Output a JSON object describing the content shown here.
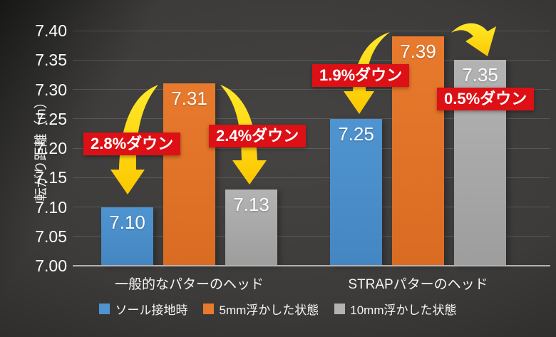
{
  "chart_data": {
    "type": "bar",
    "title": "",
    "ylabel": "転がり距離（m）",
    "ylim": [
      7.0,
      7.4
    ],
    "ytick_step": 0.05,
    "value_decimals": 2,
    "grid": true,
    "legend_position": "bottom",
    "categories": [
      "一般的なパターのヘッド",
      "STRAPパターのヘッド"
    ],
    "series": [
      {
        "name": "ソール接地時",
        "color": "#4f94d0",
        "color2": "#4486c2",
        "values": [
          7.1,
          7.25
        ]
      },
      {
        "name": "5mm浮かした状態",
        "color": "#e87a2e",
        "color2": "#d96c22",
        "values": [
          7.31,
          7.39
        ]
      },
      {
        "name": "10mm浮かした状態",
        "color": "#b3b3b3",
        "color2": "#9d9d9d",
        "values": [
          7.13,
          7.35
        ]
      }
    ],
    "annotations": [
      {
        "label": "2.8%ダウン",
        "category": "一般的なパターのヘッド",
        "from": "5mm浮かした状態",
        "to": "ソール接地時"
      },
      {
        "label": "2.4%ダウン",
        "category": "一般的なパターのヘッド",
        "from": "5mm浮かした状態",
        "to": "10mm浮かした状態"
      },
      {
        "label": "1.9%ダウン",
        "category": "STRAPパターのヘッド",
        "from": "5mm浮かした状態",
        "to": "ソール接地時"
      },
      {
        "label": "0.5%ダウン",
        "category": "STRAPパターのヘッド",
        "from": "5mm浮かした状態",
        "to": "10mm浮かした状態"
      }
    ]
  },
  "colors": {
    "annotation_bg": "#dd1016",
    "annotation_text": "#ffffff",
    "arrow_top": "#ffe929",
    "arrow_bottom": "#fcc800",
    "axis_text": "#fdfdfd",
    "gridline": "rgba(255,255,255,0.14)",
    "baseline": "#b3b2b0",
    "background_center": "#454443",
    "background_edge": "#1c1b1b"
  }
}
